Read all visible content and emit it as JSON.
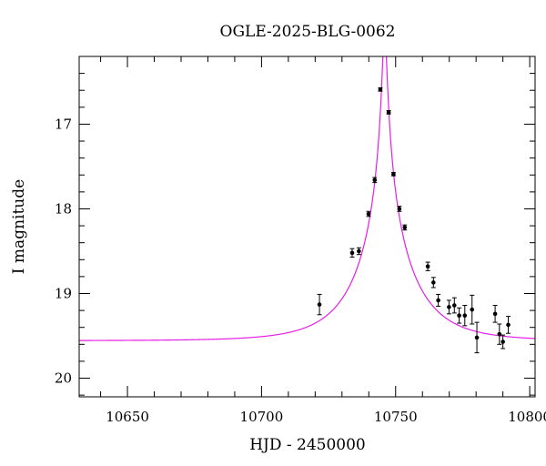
{
  "chart_data": {
    "type": "scatter",
    "title": "OGLE-2025-BLG-0062",
    "xlabel": "HJD - 2450000",
    "ylabel": "I magnitude",
    "xlim": [
      10632,
      10802
    ],
    "ylim": [
      20.22,
      16.2
    ],
    "y_inverted": true,
    "x_ticks": [
      10650,
      10700,
      10750,
      10800
    ],
    "x_tick_labels": [
      "10650",
      "10700",
      "10750",
      "10800"
    ],
    "y_ticks": [
      17,
      18,
      19,
      20
    ],
    "y_tick_labels": [
      "17",
      "18",
      "19",
      "20"
    ],
    "x_minor_step": 10,
    "y_minor_step": 0.2,
    "grid": false,
    "model": {
      "color": "#e61ee6",
      "baseline_mag": 19.557,
      "t0": 10745.9,
      "u0": 0.033,
      "tE": 20.8
    },
    "points": [
      {
        "x": 10721.6,
        "y": 19.13,
        "err": 0.12
      },
      {
        "x": 10733.8,
        "y": 18.52,
        "err": 0.05
      },
      {
        "x": 10736.3,
        "y": 18.5,
        "err": 0.04
      },
      {
        "x": 10739.9,
        "y": 18.06,
        "err": 0.03
      },
      {
        "x": 10742.2,
        "y": 17.66,
        "err": 0.03
      },
      {
        "x": 10744.3,
        "y": 16.59,
        "err": 0.02
      },
      {
        "x": 10747.4,
        "y": 16.86,
        "err": 0.02
      },
      {
        "x": 10749.2,
        "y": 17.59,
        "err": 0.02
      },
      {
        "x": 10751.4,
        "y": 18.0,
        "err": 0.03
      },
      {
        "x": 10753.4,
        "y": 18.22,
        "err": 0.03
      },
      {
        "x": 10762.0,
        "y": 18.68,
        "err": 0.05
      },
      {
        "x": 10764.1,
        "y": 18.87,
        "err": 0.06
      },
      {
        "x": 10765.9,
        "y": 19.08,
        "err": 0.07
      },
      {
        "x": 10769.9,
        "y": 19.16,
        "err": 0.08
      },
      {
        "x": 10771.9,
        "y": 19.14,
        "err": 0.09
      },
      {
        "x": 10773.7,
        "y": 19.26,
        "err": 0.09
      },
      {
        "x": 10775.8,
        "y": 19.26,
        "err": 0.12
      },
      {
        "x": 10778.5,
        "y": 19.19,
        "err": 0.17
      },
      {
        "x": 10780.3,
        "y": 19.52,
        "err": 0.18
      },
      {
        "x": 10787.1,
        "y": 19.24,
        "err": 0.1
      },
      {
        "x": 10788.7,
        "y": 19.48,
        "err": 0.12
      },
      {
        "x": 10790.0,
        "y": 19.57,
        "err": 0.08
      },
      {
        "x": 10792.0,
        "y": 19.37,
        "err": 0.1
      }
    ]
  }
}
